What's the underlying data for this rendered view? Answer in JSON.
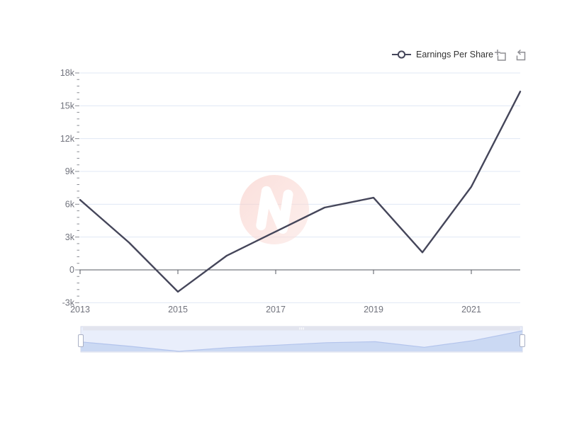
{
  "legend": {
    "label": "Earnings Per Share"
  },
  "icons": {
    "legend_marker": "line-circle-marker",
    "toolbox_zoom": "zoom-select-box",
    "toolbox_restore": "restore-arrow-box",
    "slider_grip": "triple-bar-grip",
    "watermark": "pink-n-logo"
  },
  "colors": {
    "series_line": "#45465A",
    "grid_line": "#E0E8F4",
    "axis_line": "#565860",
    "tick": "#8A8D94",
    "tick_label": "#71737D",
    "legend_text": "#333333",
    "toolbox_icon": "#8F8F94",
    "slider_bg": "#E9EEFB",
    "slider_strip": "#E2E4EE",
    "slider_shadow_fill": "#CBD9F3",
    "slider_shadow_line": "#B3C4EC",
    "slider_border": "#D6DAE8",
    "handle_fill": "#FFFFFF",
    "handle_border": "#A9B0C5",
    "watermark_pink_1": "#F7C6BF",
    "watermark_pink_2": "#FBE2DE"
  },
  "chart_data": {
    "type": "line",
    "title": "",
    "x": [
      "2013",
      "2014",
      "2015",
      "2016",
      "2017",
      "2018",
      "2019",
      "2020",
      "2021",
      "2022"
    ],
    "series": [
      {
        "name": "Earnings Per Share",
        "values": [
          6400,
          2500,
          -2000,
          1300,
          3500,
          5700,
          6600,
          1600,
          7600,
          16300
        ]
      }
    ],
    "x_tick_labels": [
      "2013",
      "2015",
      "2017",
      "2019",
      "2021"
    ],
    "y_ticks": [
      -3000,
      0,
      3000,
      6000,
      9000,
      12000,
      15000,
      18000
    ],
    "y_tick_labels": [
      "-3k",
      "0",
      "3k",
      "6k",
      "9k",
      "12k",
      "15k",
      "18k"
    ],
    "ylim": [
      -3000,
      18000
    ],
    "xlabel": "",
    "ylabel": "",
    "grid": "horizontal-only",
    "legend_position": "top-right",
    "datazoom_slider": {
      "selected_range": [
        "2013",
        "2022"
      ],
      "full_width": true
    }
  }
}
